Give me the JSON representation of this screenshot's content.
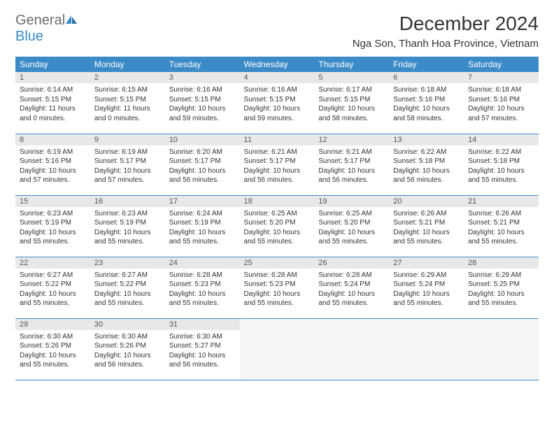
{
  "brand": {
    "word1": "General",
    "word2": "Blue"
  },
  "title": "December 2024",
  "location": "Nga Son, Thanh Hoa Province, Vietnam",
  "colors": {
    "header_bg": "#3b8bc9",
    "header_text": "#ffffff",
    "daynum_bg": "#e8e8e8",
    "border": "#3b8bc9",
    "brand_gray": "#6d6e71",
    "brand_blue": "#3b8bc9"
  },
  "weekdays": [
    "Sunday",
    "Monday",
    "Tuesday",
    "Wednesday",
    "Thursday",
    "Friday",
    "Saturday"
  ],
  "days": [
    {
      "n": "1",
      "sr": "6:14 AM",
      "ss": "5:15 PM",
      "dl": "11 hours and 0 minutes."
    },
    {
      "n": "2",
      "sr": "6:15 AM",
      "ss": "5:15 PM",
      "dl": "11 hours and 0 minutes."
    },
    {
      "n": "3",
      "sr": "6:16 AM",
      "ss": "5:15 PM",
      "dl": "10 hours and 59 minutes."
    },
    {
      "n": "4",
      "sr": "6:16 AM",
      "ss": "5:15 PM",
      "dl": "10 hours and 59 minutes."
    },
    {
      "n": "5",
      "sr": "6:17 AM",
      "ss": "5:15 PM",
      "dl": "10 hours and 58 minutes."
    },
    {
      "n": "6",
      "sr": "6:18 AM",
      "ss": "5:16 PM",
      "dl": "10 hours and 58 minutes."
    },
    {
      "n": "7",
      "sr": "6:18 AM",
      "ss": "5:16 PM",
      "dl": "10 hours and 57 minutes."
    },
    {
      "n": "8",
      "sr": "6:19 AM",
      "ss": "5:16 PM",
      "dl": "10 hours and 57 minutes."
    },
    {
      "n": "9",
      "sr": "6:19 AM",
      "ss": "5:17 PM",
      "dl": "10 hours and 57 minutes."
    },
    {
      "n": "10",
      "sr": "6:20 AM",
      "ss": "5:17 PM",
      "dl": "10 hours and 56 minutes."
    },
    {
      "n": "11",
      "sr": "6:21 AM",
      "ss": "5:17 PM",
      "dl": "10 hours and 56 minutes."
    },
    {
      "n": "12",
      "sr": "6:21 AM",
      "ss": "5:17 PM",
      "dl": "10 hours and 56 minutes."
    },
    {
      "n": "13",
      "sr": "6:22 AM",
      "ss": "5:18 PM",
      "dl": "10 hours and 56 minutes."
    },
    {
      "n": "14",
      "sr": "6:22 AM",
      "ss": "5:18 PM",
      "dl": "10 hours and 55 minutes."
    },
    {
      "n": "15",
      "sr": "6:23 AM",
      "ss": "5:19 PM",
      "dl": "10 hours and 55 minutes."
    },
    {
      "n": "16",
      "sr": "6:23 AM",
      "ss": "5:19 PM",
      "dl": "10 hours and 55 minutes."
    },
    {
      "n": "17",
      "sr": "6:24 AM",
      "ss": "5:19 PM",
      "dl": "10 hours and 55 minutes."
    },
    {
      "n": "18",
      "sr": "6:25 AM",
      "ss": "5:20 PM",
      "dl": "10 hours and 55 minutes."
    },
    {
      "n": "19",
      "sr": "6:25 AM",
      "ss": "5:20 PM",
      "dl": "10 hours and 55 minutes."
    },
    {
      "n": "20",
      "sr": "6:26 AM",
      "ss": "5:21 PM",
      "dl": "10 hours and 55 minutes."
    },
    {
      "n": "21",
      "sr": "6:26 AM",
      "ss": "5:21 PM",
      "dl": "10 hours and 55 minutes."
    },
    {
      "n": "22",
      "sr": "6:27 AM",
      "ss": "5:22 PM",
      "dl": "10 hours and 55 minutes."
    },
    {
      "n": "23",
      "sr": "6:27 AM",
      "ss": "5:22 PM",
      "dl": "10 hours and 55 minutes."
    },
    {
      "n": "24",
      "sr": "6:28 AM",
      "ss": "5:23 PM",
      "dl": "10 hours and 55 minutes."
    },
    {
      "n": "25",
      "sr": "6:28 AM",
      "ss": "5:23 PM",
      "dl": "10 hours and 55 minutes."
    },
    {
      "n": "26",
      "sr": "6:28 AM",
      "ss": "5:24 PM",
      "dl": "10 hours and 55 minutes."
    },
    {
      "n": "27",
      "sr": "6:29 AM",
      "ss": "5:24 PM",
      "dl": "10 hours and 55 minutes."
    },
    {
      "n": "28",
      "sr": "6:29 AM",
      "ss": "5:25 PM",
      "dl": "10 hours and 55 minutes."
    },
    {
      "n": "29",
      "sr": "6:30 AM",
      "ss": "5:26 PM",
      "dl": "10 hours and 55 minutes."
    },
    {
      "n": "30",
      "sr": "6:30 AM",
      "ss": "5:26 PM",
      "dl": "10 hours and 56 minutes."
    },
    {
      "n": "31",
      "sr": "6:30 AM",
      "ss": "5:27 PM",
      "dl": "10 hours and 56 minutes."
    }
  ],
  "labels": {
    "sunrise": "Sunrise: ",
    "sunset": "Sunset: ",
    "daylight": "Daylight: "
  }
}
